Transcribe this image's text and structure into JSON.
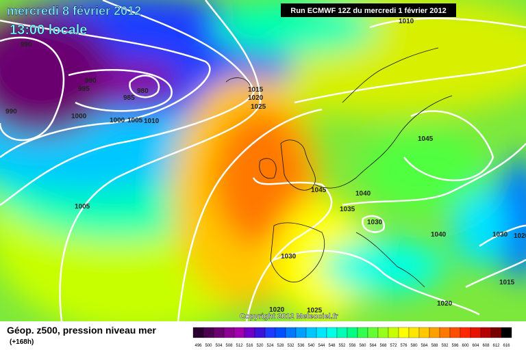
{
  "header": {
    "date": "mercredi 8 février 2012",
    "time": "13:00 locale",
    "run": "Run ECMWF 12Z du mercredi 1 février 2012"
  },
  "isobar_labels": [
    "990",
    "990",
    "995",
    "980",
    "985",
    "990",
    "1000",
    "1000",
    "1005",
    "1010",
    "1015",
    "1020",
    "1025",
    "1010",
    "1045",
    "1045",
    "1040",
    "1035",
    "1030",
    "1040",
    "1030",
    "1020",
    "1030",
    "1005",
    "1015",
    "1020",
    "1020",
    "1025"
  ],
  "copyright": "Copyright 2012 Meteociel.fr",
  "footer": {
    "title": "Géop. z500, pression niveau mer",
    "lead": "(+168h)"
  },
  "colorbar": {
    "labels": [
      "496",
      "500",
      "504",
      "508",
      "512",
      "516",
      "520",
      "524",
      "528",
      "532",
      "536",
      "540",
      "544",
      "548",
      "552",
      "556",
      "560",
      "564",
      "568",
      "572",
      "576",
      "580",
      "584",
      "588",
      "592",
      "596",
      "600",
      "604",
      "608",
      "612",
      "616"
    ],
    "colors": [
      "#2a0030",
      "#4b0050",
      "#6a006f",
      "#8a0090",
      "#a000b0",
      "#7000c8",
      "#3c14d8",
      "#1e3cff",
      "#0050ff",
      "#0078ff",
      "#00a0ff",
      "#00c8ff",
      "#00e6ff",
      "#00ffe6",
      "#00ffb4",
      "#00ff82",
      "#32ff50",
      "#64ff32",
      "#96ff1e",
      "#c8ff00",
      "#ffff00",
      "#ffe600",
      "#ffc800",
      "#ffa000",
      "#ff7800",
      "#ff5000",
      "#ff2800",
      "#e61400",
      "#b40000",
      "#780000",
      "#000000"
    ]
  }
}
